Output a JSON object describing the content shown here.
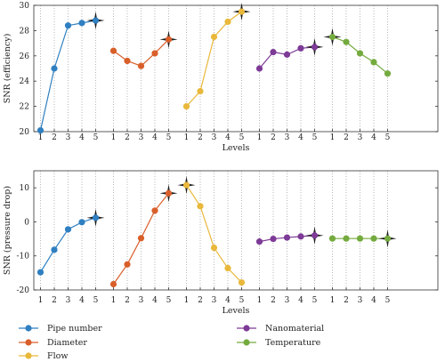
{
  "chart_data": [
    {
      "type": "line",
      "ylabel": "SNR (efficiency)",
      "xlabel": "Levels",
      "ylim": [
        20,
        30
      ],
      "yticks": [
        20,
        22,
        24,
        26,
        28,
        30
      ],
      "levels": [
        "1",
        "2",
        "3",
        "4",
        "5"
      ],
      "grid": "vertical dotted",
      "series": [
        {
          "name": "Pipe number",
          "values": [
            20.1,
            25.0,
            28.4,
            28.6,
            28.8
          ]
        },
        {
          "name": "Diameter",
          "values": [
            26.4,
            25.6,
            25.2,
            26.2,
            27.3
          ]
        },
        {
          "name": "Flow",
          "values": [
            22.0,
            23.2,
            27.5,
            28.7,
            29.5
          ]
        },
        {
          "name": "Nanomaterial",
          "values": [
            25.0,
            26.3,
            26.1,
            26.6,
            26.7
          ]
        },
        {
          "name": "Temperature",
          "values": [
            27.5,
            27.1,
            26.2,
            25.5,
            24.6
          ]
        }
      ],
      "optimum_marker": [
        5,
        5,
        5,
        5,
        1
      ]
    },
    {
      "type": "line",
      "ylabel": "SNR (pressure drop)",
      "xlabel": "Levels",
      "ylim": [
        -20,
        15
      ],
      "yticks": [
        -20,
        -10,
        0,
        10
      ],
      "levels": [
        "1",
        "2",
        "3",
        "4",
        "5"
      ],
      "grid": "vertical dotted",
      "series": [
        {
          "name": "Pipe number",
          "values": [
            -14.8,
            -8.2,
            -2.2,
            -0.1,
            1.2
          ]
        },
        {
          "name": "Diameter",
          "values": [
            -18.3,
            -12.5,
            -4.8,
            3.3,
            8.4
          ]
        },
        {
          "name": "Flow",
          "values": [
            10.8,
            4.6,
            -7.6,
            -13.6,
            -17.8
          ]
        },
        {
          "name": "Nanomaterial",
          "values": [
            -5.8,
            -5.0,
            -4.6,
            -4.3,
            -4.0
          ]
        },
        {
          "name": "Temperature",
          "values": [
            -4.9,
            -4.9,
            -4.9,
            -4.9,
            -4.9
          ]
        }
      ],
      "optimum_marker": [
        5,
        5,
        1,
        5,
        5
      ]
    }
  ],
  "colors": {
    "Pipe number": "#2f7fc1",
    "Diameter": "#d95f2a",
    "Flow": "#e9b83b",
    "Nanomaterial": "#7d3a96",
    "Temperature": "#74ab3f"
  },
  "legend": {
    "items": [
      "Pipe number",
      "Diameter",
      "Flow",
      "Nanomaterial",
      "Temperature"
    ]
  }
}
